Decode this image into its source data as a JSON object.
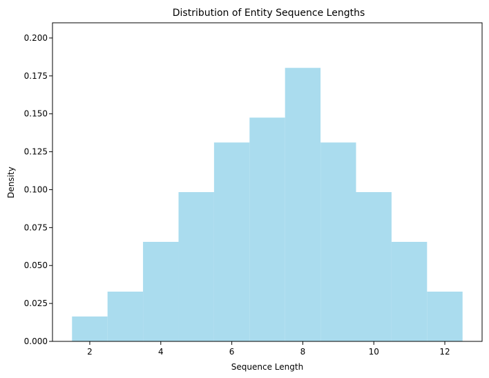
{
  "chart_data": {
    "type": "bar",
    "title": "Distribution of Entity Sequence Lengths",
    "xlabel": "Sequence Length",
    "ylabel": "Density",
    "bars": [
      {
        "x_start": 1.5,
        "x_end": 2.5,
        "value": 0.0164
      },
      {
        "x_start": 2.5,
        "x_end": 3.5,
        "value": 0.0328
      },
      {
        "x_start": 3.5,
        "x_end": 4.5,
        "value": 0.0656
      },
      {
        "x_start": 4.5,
        "x_end": 5.5,
        "value": 0.0984
      },
      {
        "x_start": 5.5,
        "x_end": 6.5,
        "value": 0.1311
      },
      {
        "x_start": 6.5,
        "x_end": 7.5,
        "value": 0.1475
      },
      {
        "x_start": 7.5,
        "x_end": 8.5,
        "value": 0.1803
      },
      {
        "x_start": 8.5,
        "x_end": 9.5,
        "value": 0.1311
      },
      {
        "x_start": 9.5,
        "x_end": 10.5,
        "value": 0.0984
      },
      {
        "x_start": 10.5,
        "x_end": 11.5,
        "value": 0.0656
      },
      {
        "x_start": 11.5,
        "x_end": 12.5,
        "value": 0.0328
      }
    ],
    "xlim": [
      0.95,
      13.05
    ],
    "ylim": [
      0,
      0.21
    ],
    "x_ticks": [
      {
        "value": 2,
        "label": "2"
      },
      {
        "value": 4,
        "label": "4"
      },
      {
        "value": 6,
        "label": "6"
      },
      {
        "value": 8,
        "label": "8"
      },
      {
        "value": 10,
        "label": "10"
      },
      {
        "value": 12,
        "label": "12"
      }
    ],
    "y_ticks": [
      {
        "value": 0.0,
        "label": "0.000"
      },
      {
        "value": 0.025,
        "label": "0.025"
      },
      {
        "value": 0.05,
        "label": "0.050"
      },
      {
        "value": 0.075,
        "label": "0.075"
      },
      {
        "value": 0.1,
        "label": "0.100"
      },
      {
        "value": 0.125,
        "label": "0.125"
      },
      {
        "value": 0.15,
        "label": "0.150"
      },
      {
        "value": 0.175,
        "label": "0.175"
      },
      {
        "value": 0.2,
        "label": "0.200"
      }
    ],
    "bar_color": "#aadcee",
    "grid": false,
    "legend": "none"
  }
}
